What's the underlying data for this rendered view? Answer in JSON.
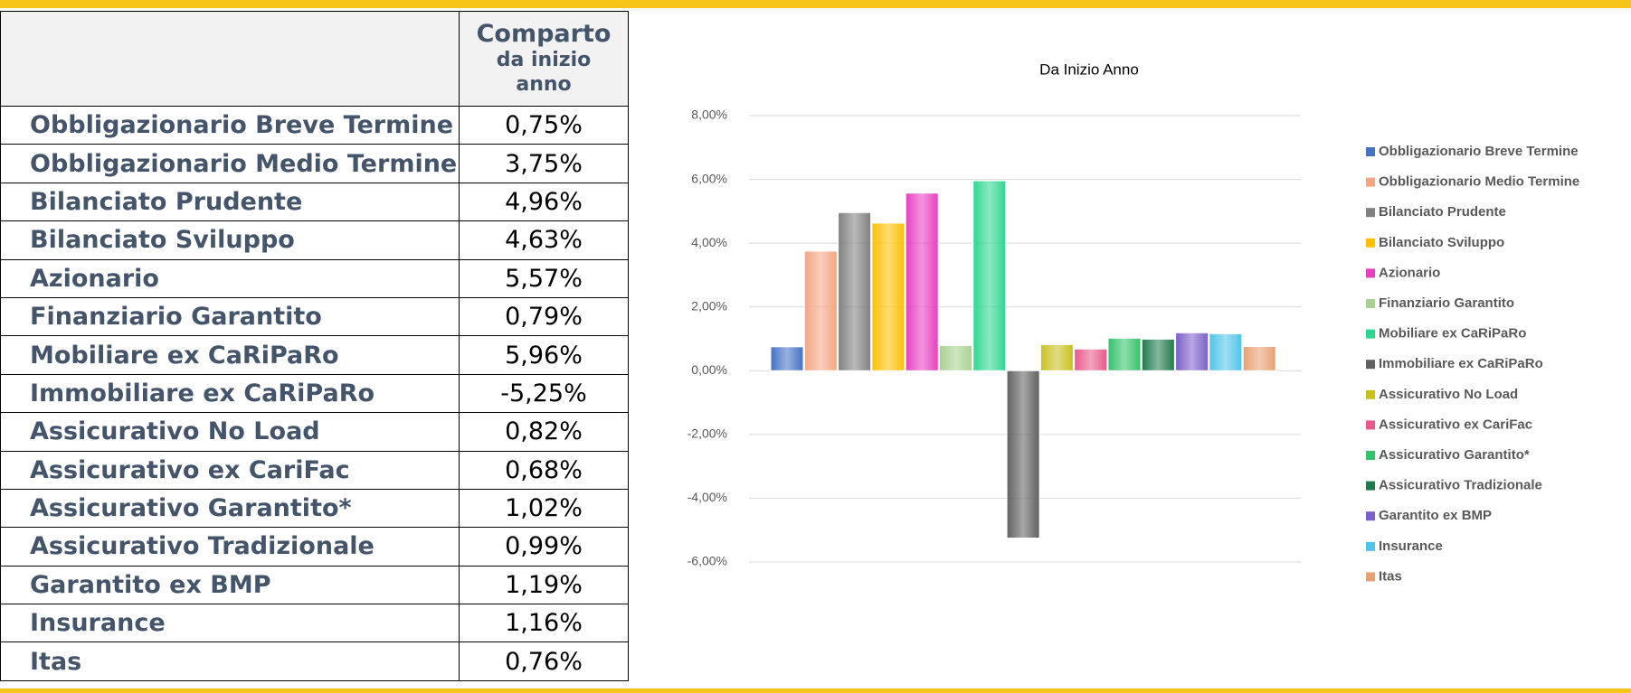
{
  "table": {
    "header": [
      "Comparto",
      "da inizio anno"
    ],
    "rows": [
      [
        "Obbligazionario Breve Termine",
        "0,75%"
      ],
      [
        "Obbligazionario Medio Termine",
        "3,75%"
      ],
      [
        "Bilanciato Prudente",
        "4,96%"
      ],
      [
        "Bilanciato Sviluppo",
        "4,63%"
      ],
      [
        "Azionario",
        "5,57%"
      ],
      [
        "Finanziario Garantito",
        "0,79%"
      ],
      [
        "Mobiliare ex CaRiPaRo",
        "5,96%"
      ],
      [
        "Immobiliare ex CaRiPaRo",
        "-5,25%"
      ],
      [
        "Assicurativo No Load",
        "0,82%"
      ],
      [
        "Assicurativo ex CariFac",
        "0,68%"
      ],
      [
        "Assicurativo Garantito*",
        "1,02%"
      ],
      [
        "Assicurativo Tradizionale",
        "0,99%"
      ],
      [
        "Garantito ex BMP",
        "1,19%"
      ],
      [
        "Insurance",
        "1,16%"
      ],
      [
        "Itas",
        "0,76%"
      ]
    ]
  },
  "chart_data": {
    "type": "bar",
    "title": "Da Inizio Anno",
    "categories": [
      null
    ],
    "ylim": [
      -6,
      8
    ],
    "yticks": [
      {
        "value": -6,
        "label": "-6,00%"
      },
      {
        "value": -4,
        "label": "-4,00%"
      },
      {
        "value": -2,
        "label": "-2,00%"
      },
      {
        "value": 0,
        "label": "0,00%"
      },
      {
        "value": 2,
        "label": "2,00%"
      },
      {
        "value": 4,
        "label": "4,00%"
      },
      {
        "value": 6,
        "label": "6,00%"
      },
      {
        "value": 8,
        "label": "8,00%"
      }
    ],
    "grid": true,
    "legend": "right",
    "series": [
      {
        "name": "Obbligazionario Breve Termine",
        "color": "#4472c4",
        "values": [
          0.75
        ]
      },
      {
        "name": "Obbligazionario Medio Termine",
        "color": "#f4a582",
        "values": [
          3.75
        ]
      },
      {
        "name": "Bilanciato Prudente",
        "color": "#808080",
        "values": [
          4.96
        ]
      },
      {
        "name": "Bilanciato Sviluppo",
        "color": "#ffc000",
        "values": [
          4.63
        ]
      },
      {
        "name": "Azionario",
        "color": "#e83ec0",
        "values": [
          5.57
        ]
      },
      {
        "name": "Finanziario Garantito",
        "color": "#a9d18e",
        "values": [
          0.79
        ]
      },
      {
        "name": "Mobiliare ex CaRiPaRo",
        "color": "#2fd68f",
        "values": [
          5.96
        ]
      },
      {
        "name": "Immobiliare ex CaRiPaRo",
        "color": "#606060",
        "values": [
          -5.25
        ]
      },
      {
        "name": "Assicurativo No Load",
        "color": "#c9c01e",
        "values": [
          0.82
        ]
      },
      {
        "name": "Assicurativo ex CariFac",
        "color": "#e8588a",
        "values": [
          0.68
        ]
      },
      {
        "name": "Assicurativo Garantito*",
        "color": "#33c26a",
        "values": [
          1.02
        ]
      },
      {
        "name": "Assicurativo Tradizionale",
        "color": "#1f7a4d",
        "values": [
          0.99
        ]
      },
      {
        "name": "Garantito ex BMP",
        "color": "#7b5fc9",
        "values": [
          1.19
        ]
      },
      {
        "name": "Insurance",
        "color": "#4fc3e8",
        "values": [
          1.16
        ]
      },
      {
        "name": "Itas",
        "color": "#e8a070",
        "values": [
          0.76
        ]
      }
    ]
  }
}
